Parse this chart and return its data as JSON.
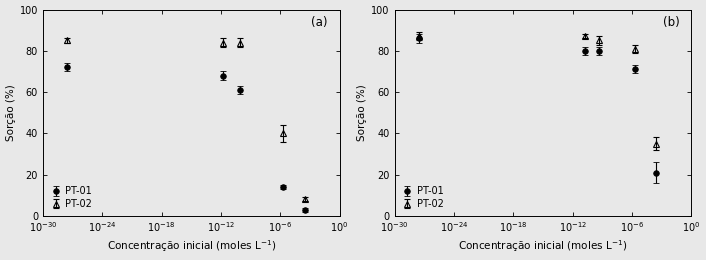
{
  "panel_a": {
    "label": "(a)",
    "pt01": {
      "x": [
        3e-28,
        1.5e-12,
        8e-11,
        2e-06,
        0.0003
      ],
      "y": [
        72,
        68,
        61,
        14,
        3
      ],
      "yerr": [
        2,
        2,
        2,
        1,
        1
      ]
    },
    "pt02": {
      "x": [
        3e-28,
        1.5e-12,
        8e-11,
        2e-06,
        0.0003
      ],
      "y": [
        85,
        84,
        84,
        40,
        8
      ],
      "yerr": [
        1,
        2,
        2,
        4,
        1
      ]
    }
  },
  "panel_b": {
    "label": "(b)",
    "pt01": {
      "x": [
        3e-28,
        2e-11,
        5e-10,
        2e-06,
        0.0003
      ],
      "y": [
        86,
        80,
        80,
        71,
        21
      ],
      "yerr": [
        2,
        2,
        2,
        2,
        5
      ]
    },
    "pt02": {
      "x": [
        3e-28,
        2e-11,
        5e-10,
        2e-06,
        0.0003
      ],
      "y": [
        87,
        87,
        85,
        81,
        35
      ],
      "yerr": [
        2,
        1,
        2,
        2,
        3
      ]
    }
  },
  "xlim": [
    1e-30,
    1.0
  ],
  "ylim": [
    0,
    100
  ],
  "xlabel": "Concentração inicial (moles L$^{-1}$)",
  "ylabel": "Sorção (%)",
  "xticks": [
    1e-30,
    1e-24,
    1e-18,
    1e-12,
    1e-06,
    1.0
  ],
  "yticks": [
    0,
    20,
    40,
    60,
    80,
    100
  ],
  "bg_color": "#e8e8e8"
}
